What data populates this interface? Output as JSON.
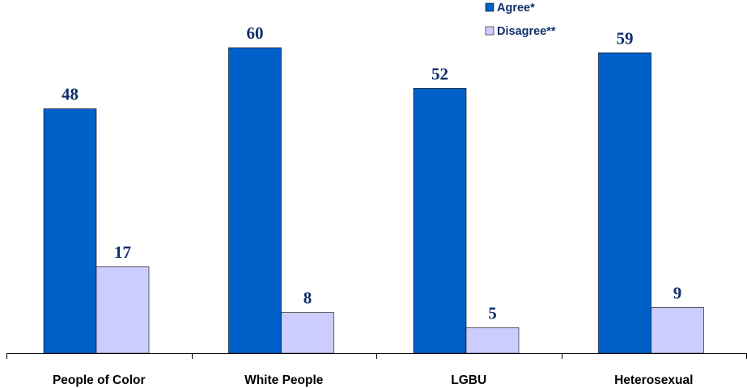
{
  "chart_data": {
    "type": "bar",
    "categories": [
      "People of Color",
      "White People",
      "LGBU",
      "Heterosexual"
    ],
    "series": [
      {
        "name": "Agree*",
        "values": [
          48,
          60,
          52,
          59
        ],
        "color": "#0060c9"
      },
      {
        "name": "Disagree**",
        "values": [
          17,
          8,
          5,
          9
        ],
        "color": "#ccccff"
      }
    ],
    "title": "",
    "xlabel": "",
    "ylabel": "",
    "ylim": [
      0,
      68
    ],
    "grid": false,
    "legend": "top-right",
    "data_labels": true
  }
}
